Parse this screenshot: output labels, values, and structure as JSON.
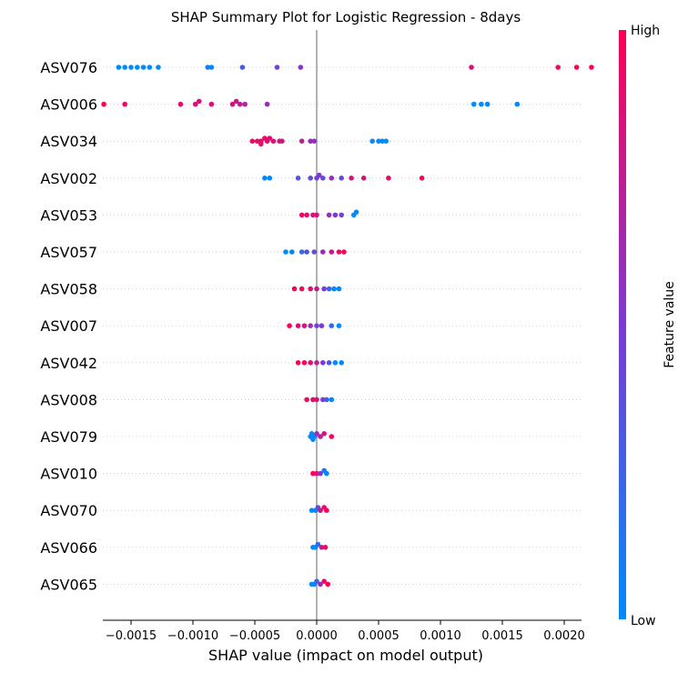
{
  "chart_data": {
    "type": "scatter",
    "title": "SHAP Summary Plot for Logistic Regression - 8days",
    "xlabel": "SHAP value (impact on model output)",
    "xlim": [
      -0.0019,
      0.00245
    ],
    "xticks": [
      -0.0015,
      -0.001,
      -0.0005,
      0.0,
      0.0005,
      0.001,
      0.0015,
      0.002
    ],
    "xtick_labels": [
      "−0.0015",
      "−0.0010",
      "−0.0005",
      "0.0000",
      "0.0005",
      "0.0010",
      "0.0015",
      "0.0020"
    ],
    "colorbar": {
      "label": "Feature value",
      "high": "High",
      "low": "Low",
      "colors": [
        "#008afb",
        "#7d3ad2",
        "#ff0052"
      ]
    },
    "features": [
      {
        "name": "ASV076",
        "points": [
          [
            -0.0016,
            0.0
          ],
          [
            -0.00155,
            0.0
          ],
          [
            -0.0015,
            0.0
          ],
          [
            -0.00145,
            0.0
          ],
          [
            -0.0014,
            0.0
          ],
          [
            -0.00135,
            0.0
          ],
          [
            -0.00128,
            0.0
          ],
          [
            -0.00088,
            0.1
          ],
          [
            -0.00085,
            0.0
          ],
          [
            -0.0006,
            0.3
          ],
          [
            -0.00032,
            0.45
          ],
          [
            -0.00013,
            0.55
          ],
          [
            0.00125,
            0.85
          ],
          [
            0.00195,
            0.95
          ],
          [
            0.0021,
            1.0
          ],
          [
            0.00222,
            1.0
          ]
        ]
      },
      {
        "name": "ASV006",
        "points": [
          [
            -0.00172,
            1.0
          ],
          [
            -0.00155,
            0.95
          ],
          [
            -0.0011,
            0.9
          ],
          [
            -0.00098,
            0.85
          ],
          [
            -0.00095,
            0.8
          ],
          [
            -0.00085,
            0.85
          ],
          [
            -0.00068,
            0.85
          ],
          [
            -0.00065,
            0.8
          ],
          [
            -0.00062,
            0.75
          ],
          [
            -0.00058,
            0.7
          ],
          [
            -0.0004,
            0.6
          ],
          [
            0.00127,
            0.0
          ],
          [
            0.00133,
            0.0
          ],
          [
            0.00138,
            0.0
          ],
          [
            0.00162,
            0.0
          ]
        ]
      },
      {
        "name": "ASV034",
        "points": [
          [
            -0.00045,
            0.95
          ],
          [
            -0.0004,
            0.95
          ],
          [
            -0.00048,
            0.9
          ],
          [
            -0.00042,
            0.9
          ],
          [
            -0.00035,
            0.85
          ],
          [
            -0.0003,
            0.85
          ],
          [
            -0.00052,
            0.95
          ],
          [
            -0.00045,
            0.9
          ],
          [
            -0.00038,
            0.85
          ],
          [
            -0.00028,
            0.8
          ],
          [
            -0.00012,
            0.7
          ],
          [
            -5e-05,
            0.6
          ],
          [
            -2e-05,
            0.55
          ],
          [
            0.00045,
            0.0
          ],
          [
            0.0005,
            0.0
          ],
          [
            0.00053,
            0.0
          ],
          [
            0.00056,
            0.0
          ]
        ]
      },
      {
        "name": "ASV002",
        "points": [
          [
            -0.00042,
            0.0
          ],
          [
            -0.00038,
            0.0
          ],
          [
            -0.00015,
            0.3
          ],
          [
            -5e-05,
            0.4
          ],
          [
            0.0,
            0.45
          ],
          [
            2e-05,
            0.5
          ],
          [
            5e-05,
            0.4
          ],
          [
            0.00012,
            0.6
          ],
          [
            0.0002,
            0.4
          ],
          [
            0.00028,
            0.8
          ],
          [
            0.00038,
            0.85
          ],
          [
            0.00058,
            0.9
          ],
          [
            0.00085,
            1.0
          ]
        ]
      },
      {
        "name": "ASV053",
        "points": [
          [
            -0.00012,
            0.95
          ],
          [
            -8e-05,
            0.9
          ],
          [
            -3e-05,
            0.85
          ],
          [
            0.0,
            0.8
          ],
          [
            0.0001,
            0.6
          ],
          [
            0.00015,
            0.5
          ],
          [
            0.0002,
            0.45
          ],
          [
            0.0003,
            0.0
          ],
          [
            0.00032,
            0.0
          ]
        ]
      },
      {
        "name": "ASV057",
        "points": [
          [
            -0.00025,
            0.0
          ],
          [
            -0.0002,
            0.05
          ],
          [
            -0.00012,
            0.2
          ],
          [
            -8e-05,
            0.3
          ],
          [
            -2e-05,
            0.4
          ],
          [
            5e-05,
            0.6
          ],
          [
            0.00012,
            0.8
          ],
          [
            0.00018,
            0.9
          ],
          [
            0.00022,
            1.0
          ]
        ]
      },
      {
        "name": "ASV058",
        "points": [
          [
            -0.00018,
            1.0
          ],
          [
            -0.00012,
            0.95
          ],
          [
            -5e-05,
            0.9
          ],
          [
            0.0,
            0.8
          ],
          [
            6e-05,
            0.5
          ],
          [
            0.0001,
            0.2
          ],
          [
            0.00014,
            0.0
          ],
          [
            0.00018,
            0.0
          ]
        ]
      },
      {
        "name": "ASV007",
        "points": [
          [
            -0.00022,
            1.0
          ],
          [
            -0.00015,
            0.9
          ],
          [
            -0.0001,
            0.8
          ],
          [
            -5e-05,
            0.6
          ],
          [
            0.0,
            0.45
          ],
          [
            4e-05,
            0.5
          ],
          [
            0.00012,
            0.2
          ],
          [
            0.00018,
            0.0
          ]
        ]
      },
      {
        "name": "ASV042",
        "points": [
          [
            -0.00015,
            1.0
          ],
          [
            -0.0001,
            0.95
          ],
          [
            -5e-05,
            0.9
          ],
          [
            0.0,
            0.7
          ],
          [
            5e-05,
            0.5
          ],
          [
            0.0001,
            0.3
          ],
          [
            0.00015,
            0.0
          ],
          [
            0.0002,
            0.0
          ]
        ]
      },
      {
        "name": "ASV008",
        "points": [
          [
            -8e-05,
            0.95
          ],
          [
            -3e-05,
            0.9
          ],
          [
            0.0,
            0.85
          ],
          [
            5e-05,
            0.5
          ],
          [
            8e-05,
            0.3
          ],
          [
            0.00012,
            0.0
          ]
        ]
      },
      {
        "name": "ASV079",
        "points": [
          [
            -5e-05,
            0.0
          ],
          [
            -4e-05,
            0.0
          ],
          [
            -3e-05,
            0.0
          ],
          [
            -2e-05,
            0.0
          ],
          [
            0.0,
            0.6
          ],
          [
            3e-05,
            0.7
          ],
          [
            6e-05,
            0.8
          ],
          [
            0.00012,
            0.95
          ]
        ]
      },
      {
        "name": "ASV010",
        "points": [
          [
            -3e-05,
            1.0
          ],
          [
            0.0,
            0.9
          ],
          [
            3e-05,
            0.5
          ],
          [
            6e-05,
            0.1
          ],
          [
            8e-05,
            0.0
          ]
        ]
      },
      {
        "name": "ASV070",
        "points": [
          [
            -4e-05,
            0.0
          ],
          [
            -1e-05,
            0.0
          ],
          [
            1e-05,
            0.4
          ],
          [
            3e-05,
            0.8
          ],
          [
            6e-05,
            0.9
          ],
          [
            8e-05,
            1.0
          ]
        ]
      },
      {
        "name": "ASV066",
        "points": [
          [
            -3e-05,
            0.0
          ],
          [
            -1e-05,
            0.0
          ],
          [
            1e-05,
            0.2
          ],
          [
            4e-05,
            0.8
          ],
          [
            7e-05,
            0.95
          ]
        ]
      },
      {
        "name": "ASV065",
        "points": [
          [
            -4e-05,
            0.0
          ],
          [
            -2e-05,
            0.0
          ],
          [
            0.0,
            0.2
          ],
          [
            3e-05,
            0.6
          ],
          [
            6e-05,
            0.9
          ],
          [
            9e-05,
            1.0
          ]
        ]
      }
    ]
  }
}
